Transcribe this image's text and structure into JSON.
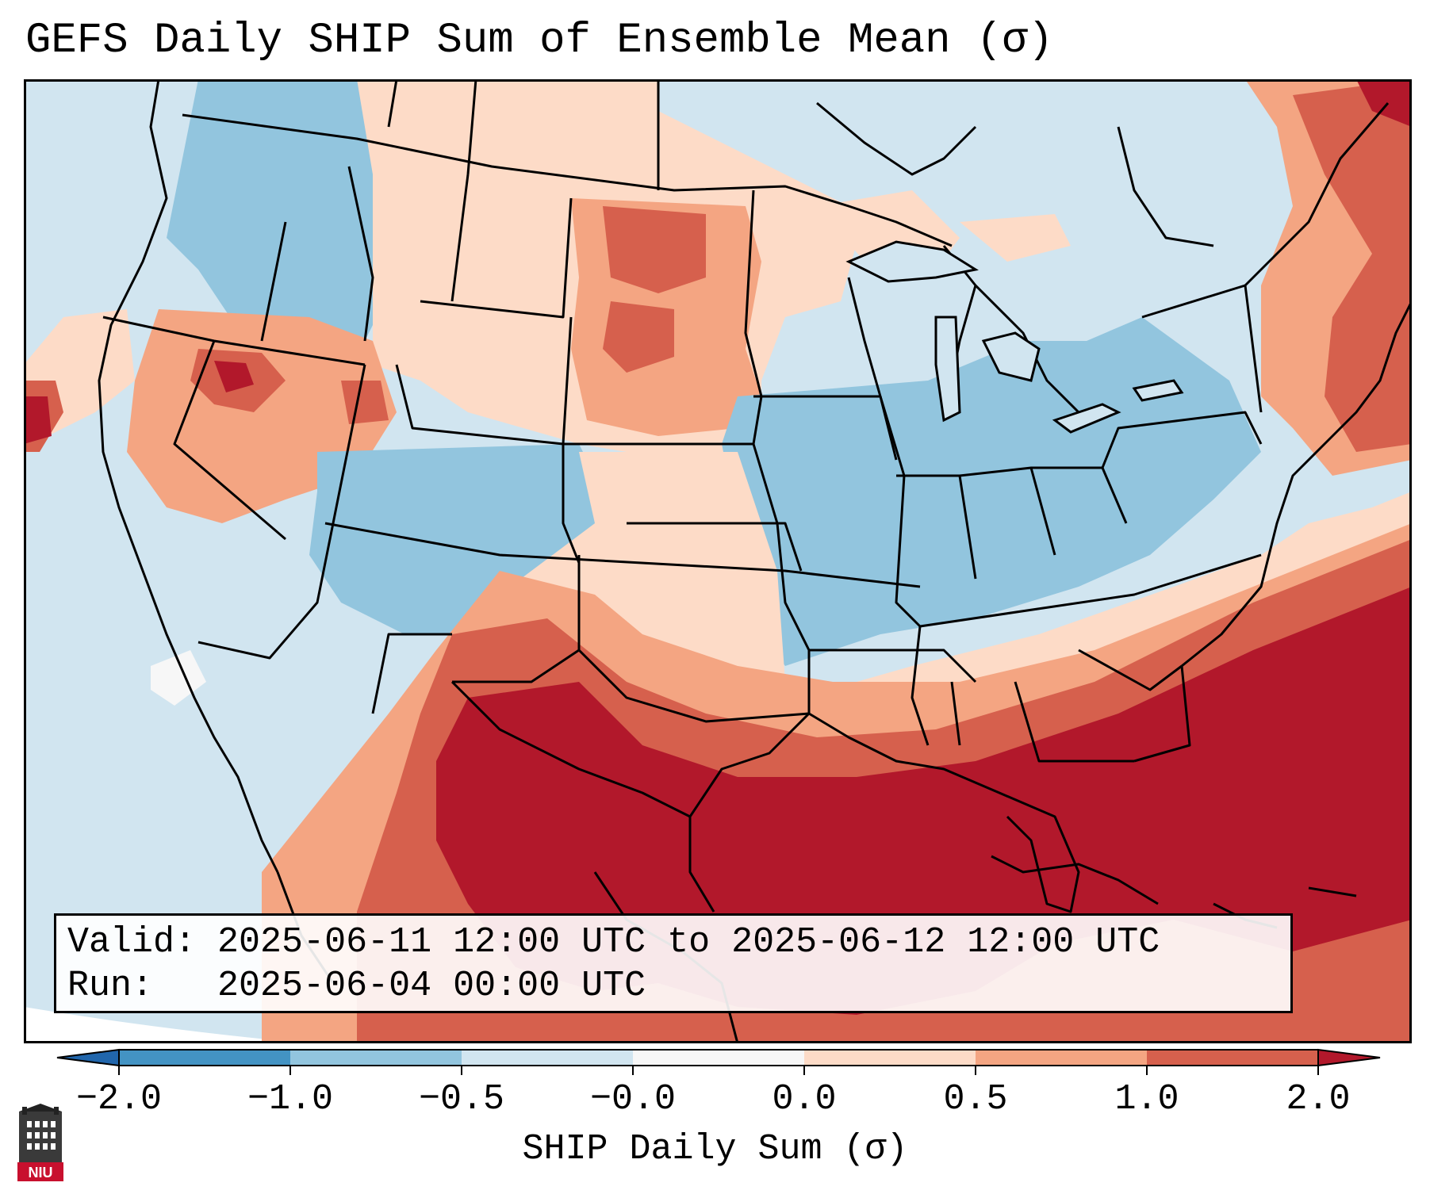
{
  "title": "GEFS Daily SHIP Sum of Ensemble Mean (σ)",
  "info": {
    "valid_label": "Valid:",
    "valid_value": "2025-06-11 12:00 UTC to 2025-06-12 12:00 UTC",
    "run_label": "Run:",
    "run_value": "2025-06-04 00:00 UTC"
  },
  "colorbar": {
    "label": "SHIP Daily Sum (σ)",
    "ticks": [
      "−2.0",
      "−1.0",
      "−0.5",
      "−0.0",
      "0.0",
      "0.5",
      "1.0",
      "2.0"
    ],
    "bins": [
      {
        "range": "< -2.0",
        "color": "#2166ac"
      },
      {
        "range": "-2.0 to -1.0",
        "color": "#4393c3"
      },
      {
        "range": "-1.0 to -0.5",
        "color": "#92c5de"
      },
      {
        "range": "-0.5 to -0.0",
        "color": "#d1e5f0"
      },
      {
        "range": "-0.0 to 0.0",
        "color": "#f7f7f7"
      },
      {
        "range": "0.0 to 0.5",
        "color": "#fddbc7"
      },
      {
        "range": "0.5 to 1.0",
        "color": "#f4a582"
      },
      {
        "range": "1.0 to 2.0",
        "color": "#d6604d"
      },
      {
        "range": "> 2.0",
        "color": "#b2182b"
      }
    ]
  },
  "map_regions": [
    {
      "area": "Pacific Northwest / Idaho",
      "category": "-1.0 to -0.5"
    },
    {
      "area": "Northern Plains (Dakotas)",
      "category": "0.5 to 1.0"
    },
    {
      "area": "Northern Nevada / Utah",
      "category": "1.0 to 2.0"
    },
    {
      "area": "Colorado / Utah",
      "category": "-1.0 to -0.5"
    },
    {
      "area": "Midwest / Ohio Valley",
      "category": "-1.0 to -0.5"
    },
    {
      "area": "Pennsylvania",
      "category": "-1.0 to -0.5"
    },
    {
      "area": "Texas / Gulf Coast / Southeast",
      "category": "> 2.0"
    },
    {
      "area": "Atlantic Ocean",
      "category": "> 2.0"
    },
    {
      "area": "New England / Maritimes",
      "category": "1.0 to 2.0"
    }
  ],
  "logo": {
    "text": "NIU"
  }
}
